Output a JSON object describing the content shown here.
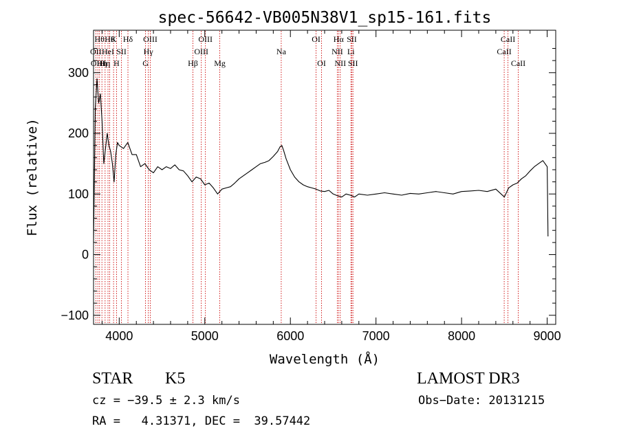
{
  "chart_data": {
    "type": "line",
    "title": "spec-56642-VB005N38V1_sp15-161.fits",
    "xlabel": "Wavelength (Å)",
    "ylabel": "Flux (relative)",
    "xlim": [
      3700,
      9100
    ],
    "ylim": [
      -115,
      370
    ],
    "xticks": [
      4000,
      5000,
      6000,
      7000,
      8000,
      9000
    ],
    "yticks": [
      -100,
      0,
      100,
      200,
      300
    ],
    "grid": false,
    "line_color": "#000000",
    "marker_color": "#cc0000",
    "series": [
      {
        "x": [
          3700,
          3720,
          3740,
          3760,
          3780,
          3800,
          3820,
          3840,
          3860,
          3880,
          3900,
          3920,
          3940,
          3960,
          3980,
          4000,
          4050,
          4100,
          4150,
          4200,
          4250,
          4300,
          4350,
          4400,
          4450,
          4500,
          4550,
          4600,
          4650,
          4700,
          4750,
          4800,
          4850,
          4900,
          4950,
          5000,
          5050,
          5100,
          5150,
          5200,
          5250,
          5300,
          5350,
          5400,
          5450,
          5500,
          5550,
          5600,
          5650,
          5700,
          5750,
          5800,
          5850,
          5880,
          5900,
          5920,
          5950,
          6000,
          6050,
          6100,
          6150,
          6200,
          6250,
          6300,
          6350,
          6400,
          6450,
          6500,
          6550,
          6600,
          6650,
          6700,
          6750,
          6800,
          6900,
          7000,
          7100,
          7200,
          7300,
          7400,
          7500,
          7600,
          7700,
          7800,
          7900,
          8000,
          8100,
          8200,
          8300,
          8400,
          8500,
          8550,
          8600,
          8650,
          8700,
          8750,
          8800,
          8850,
          8900,
          8950,
          9000,
          9010
        ],
        "values": [
          20,
          240,
          290,
          250,
          265,
          220,
          150,
          175,
          200,
          180,
          170,
          150,
          120,
          165,
          185,
          180,
          175,
          185,
          165,
          165,
          145,
          150,
          140,
          135,
          145,
          140,
          145,
          142,
          148,
          140,
          138,
          130,
          120,
          128,
          125,
          115,
          118,
          110,
          100,
          108,
          110,
          112,
          118,
          125,
          130,
          135,
          140,
          145,
          150,
          152,
          155,
          162,
          170,
          178,
          180,
          172,
          158,
          140,
          128,
          120,
          115,
          112,
          110,
          108,
          105,
          104,
          106,
          100,
          97,
          95,
          100,
          98,
          95,
          100,
          98,
          100,
          102,
          100,
          98,
          101,
          100,
          102,
          104,
          102,
          100,
          104,
          105,
          106,
          104,
          108,
          95,
          110,
          115,
          118,
          125,
          130,
          138,
          145,
          150,
          155,
          145,
          30
        ]
      }
    ],
    "lines": [
      {
        "x": 3727,
        "label": "OII",
        "row": 1
      },
      {
        "x": 3750,
        "label": "OIII",
        "row": 2
      },
      {
        "x": 3770,
        "label": "Hθ",
        "row": 0
      },
      {
        "x": 3798,
        "label": "Hη",
        "row": 2
      },
      {
        "x": 3835,
        "label": "Hη",
        "row": 2
      },
      {
        "x": 3869,
        "label": "HeI",
        "row": 1
      },
      {
        "x": 3889,
        "label": "Hθ",
        "row": 0
      },
      {
        "x": 3934,
        "label": "K",
        "row": 0
      },
      {
        "x": 3969,
        "label": "H",
        "row": 2
      },
      {
        "x": 4026,
        "label": "SII",
        "row": 1
      },
      {
        "x": 4102,
        "label": "Hδ",
        "row": 0
      },
      {
        "x": 4307,
        "label": "G",
        "row": 2
      },
      {
        "x": 4340,
        "label": "Hγ",
        "row": 1
      },
      {
        "x": 4363,
        "label": "OIII",
        "row": 0
      },
      {
        "x": 4861,
        "label": "Hβ",
        "row": 2
      },
      {
        "x": 4959,
        "label": "OIII",
        "row": 1
      },
      {
        "x": 5007,
        "label": "OIII",
        "row": 0
      },
      {
        "x": 5175,
        "label": "Mg",
        "row": 2
      },
      {
        "x": 5893,
        "label": "Na",
        "row": 1
      },
      {
        "x": 6300,
        "label": "OI",
        "row": 0
      },
      {
        "x": 6364,
        "label": "OI",
        "row": 2
      },
      {
        "x": 6548,
        "label": "NII",
        "row": 1
      },
      {
        "x": 6563,
        "label": "Hα",
        "row": 0
      },
      {
        "x": 6583,
        "label": "NII",
        "row": 2
      },
      {
        "x": 6707,
        "label": "Li",
        "row": 1
      },
      {
        "x": 6717,
        "label": "SII",
        "row": 0
      },
      {
        "x": 6731,
        "label": "SII",
        "row": 2
      },
      {
        "x": 8498,
        "label": "CaII",
        "row": 1
      },
      {
        "x": 8542,
        "label": "CaII",
        "row": 0
      },
      {
        "x": 8662,
        "label": "CaII",
        "row": 2
      }
    ]
  },
  "info": {
    "object_class": "STAR",
    "subclass": "K5",
    "survey": "LAMOST DR3",
    "cz": "cz = −39.5 ± 2.3 km/s",
    "obs_date": "Obs−Date: 20131215",
    "coords": "RA =   4.31371, DEC =  39.57442"
  }
}
